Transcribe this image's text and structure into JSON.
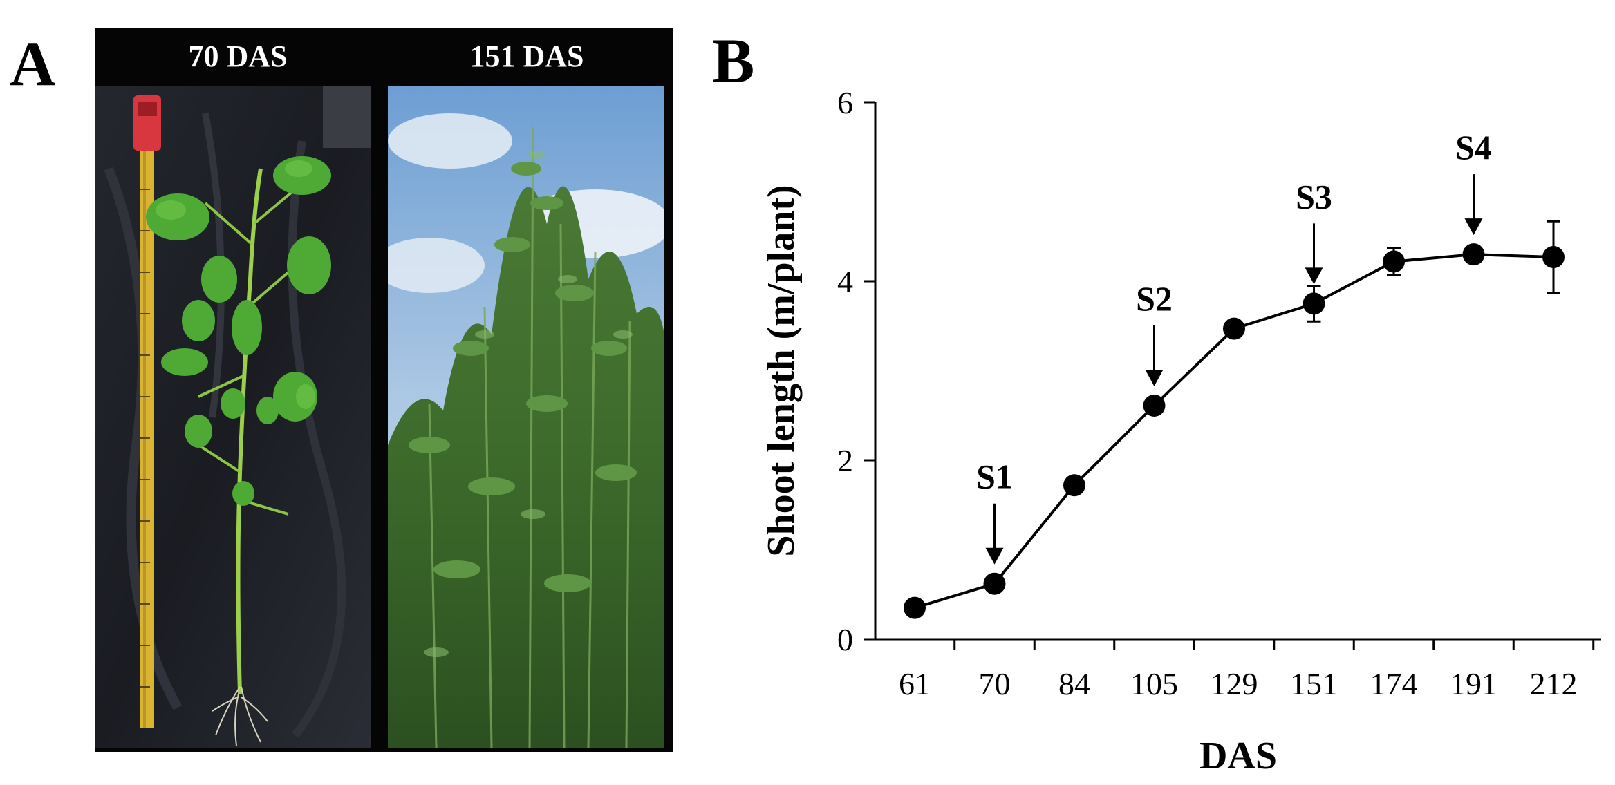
{
  "panel_a": {
    "letter": "A",
    "left_photo_label": "70 DAS",
    "right_photo_label": "151 DAS"
  },
  "panel_b": {
    "letter": "B"
  },
  "chart_data": {
    "type": "line",
    "xlabel": "DAS",
    "ylabel": "Shoot length (m/plant)",
    "categories": [
      "61",
      "70",
      "84",
      "105",
      "129",
      "151",
      "174",
      "191",
      "212"
    ],
    "series": [
      {
        "values": [
          0.35,
          0.62,
          1.72,
          2.61,
          3.47,
          3.75,
          4.22,
          4.3,
          4.27
        ],
        "errors": [
          0.0,
          0.0,
          0.0,
          0.0,
          0.0,
          0.2,
          0.15,
          0.0,
          0.4
        ]
      }
    ],
    "ylim": [
      0,
      6
    ],
    "yticks": [
      0,
      2,
      4,
      6
    ],
    "annotations": [
      {
        "label": "S1",
        "category": "70"
      },
      {
        "label": "S2",
        "category": "105"
      },
      {
        "label": "S3",
        "category": "151"
      },
      {
        "label": "S4",
        "category": "191"
      }
    ],
    "marker_color": "#000000",
    "line_color": "#000000",
    "grid": false,
    "legend": "none"
  }
}
